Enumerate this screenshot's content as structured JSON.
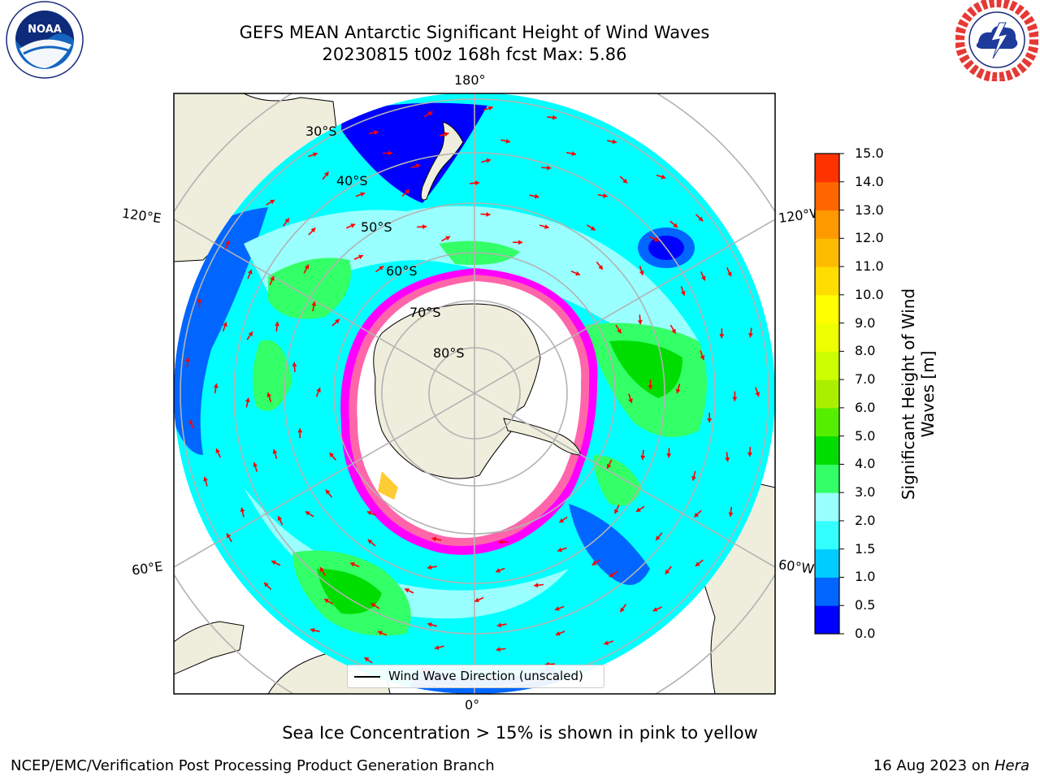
{
  "title": {
    "line1": "GEFS MEAN Antarctic Significant Height of Wind Waves",
    "line2": "20230815 t00z 168h fcst   Max: 5.86"
  },
  "map": {
    "projection": "south-polar-stereographic",
    "meridian_labels": {
      "top": "180°",
      "bottom": "0°",
      "upper_left": "120°E",
      "lower_left": "60°E",
      "upper_right": "120°W",
      "lower_right": "60°W"
    },
    "latitude_labels": [
      "30°S",
      "40°S",
      "50°S",
      "60°S",
      "70°S",
      "80°S"
    ],
    "legend": "Wind Wave Direction (unscaled)",
    "colors": {
      "land": "#efeddc",
      "ice": "#ffffff",
      "ice_edge": [
        "#ff00ff",
        "#ff66aa",
        "#ffcc33"
      ],
      "arrow": "#ff0000",
      "graticule": "#b3b3b3"
    }
  },
  "colorbar": {
    "label": "Significant Height of Wind Waves [m]",
    "ticks": [
      "0.0",
      "0.5",
      "1.0",
      "1.5",
      "2.0",
      "3.0",
      "4.0",
      "5.0",
      "6.0",
      "7.0",
      "8.0",
      "9.0",
      "10.0",
      "11.0",
      "12.0",
      "13.0",
      "14.0",
      "15.0"
    ],
    "colors": [
      "#0000ff",
      "#0066ff",
      "#00ccff",
      "#33ffff",
      "#99ffff",
      "#33ff66",
      "#00dd00",
      "#55ee00",
      "#aaee00",
      "#ccff00",
      "#eeff00",
      "#ffff00",
      "#ffdd00",
      "#ffbb00",
      "#ff9900",
      "#ff6600",
      "#ff3300"
    ]
  },
  "subtitle": "Sea Ice Concentration > 15% is shown in pink to yellow",
  "footer": {
    "left": "NCEP/EMC/Verification Post Processing Product Generation Branch",
    "right_date": "16 Aug 2023 on ",
    "right_host": "Hera"
  },
  "logos": {
    "left_text": "NOAA",
    "right_text": "NATIONAL WEATHER SERVICE"
  }
}
